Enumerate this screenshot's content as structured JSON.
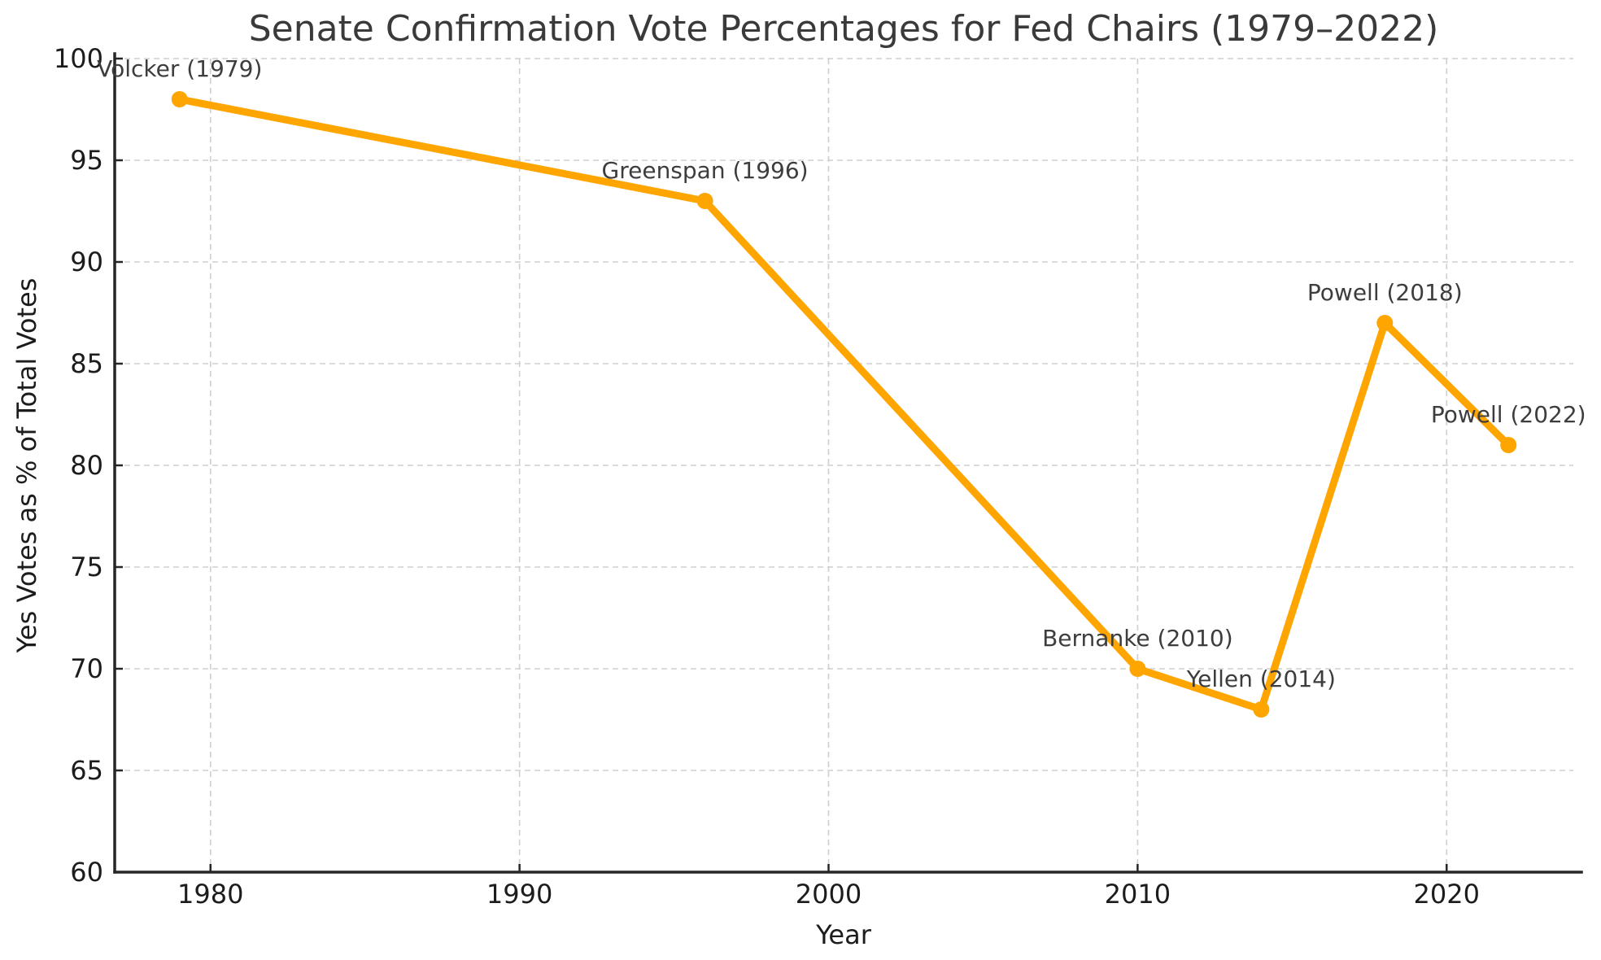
{
  "chart_data": {
    "type": "line",
    "title": "Senate Confirmation Vote Percentages for Fed Chairs (1979–2022)",
    "xlabel": "Year",
    "ylabel": "Yes Votes as % of Total Votes",
    "points": [
      {
        "chair": "Volcker",
        "year": 1979,
        "pct": 98,
        "label": "Volcker (1979)"
      },
      {
        "chair": "Greenspan",
        "year": 1996,
        "pct": 93,
        "label": "Greenspan (1996)"
      },
      {
        "chair": "Bernanke",
        "year": 2010,
        "pct": 70,
        "label": "Bernanke (2010)"
      },
      {
        "chair": "Yellen",
        "year": 2014,
        "pct": 68,
        "label": "Yellen (2014)"
      },
      {
        "chair": "Powell",
        "year": 2018,
        "pct": 87,
        "label": "Powell (2018)"
      },
      {
        "chair": "Powell",
        "year": 2022,
        "pct": 81,
        "label": "Powell (2022)"
      }
    ],
    "xticks": [
      1980,
      1990,
      2000,
      2010,
      2020
    ],
    "yticks": [
      60,
      65,
      70,
      75,
      80,
      85,
      90,
      95,
      100
    ],
    "xlim": [
      1976.9,
      2024.1
    ],
    "ylim": [
      60,
      100
    ],
    "grid": true,
    "grid_style": "dashed",
    "legend": "none",
    "marker": "circle"
  },
  "colors": {
    "line": "#FFA500",
    "grid": "#cfcfcf",
    "spine": "#262626",
    "title_text": "#3a3a3a",
    "tick_text": "#1c1c1c",
    "annotation_text": "#3d3d3d",
    "background": "#ffffff"
  }
}
